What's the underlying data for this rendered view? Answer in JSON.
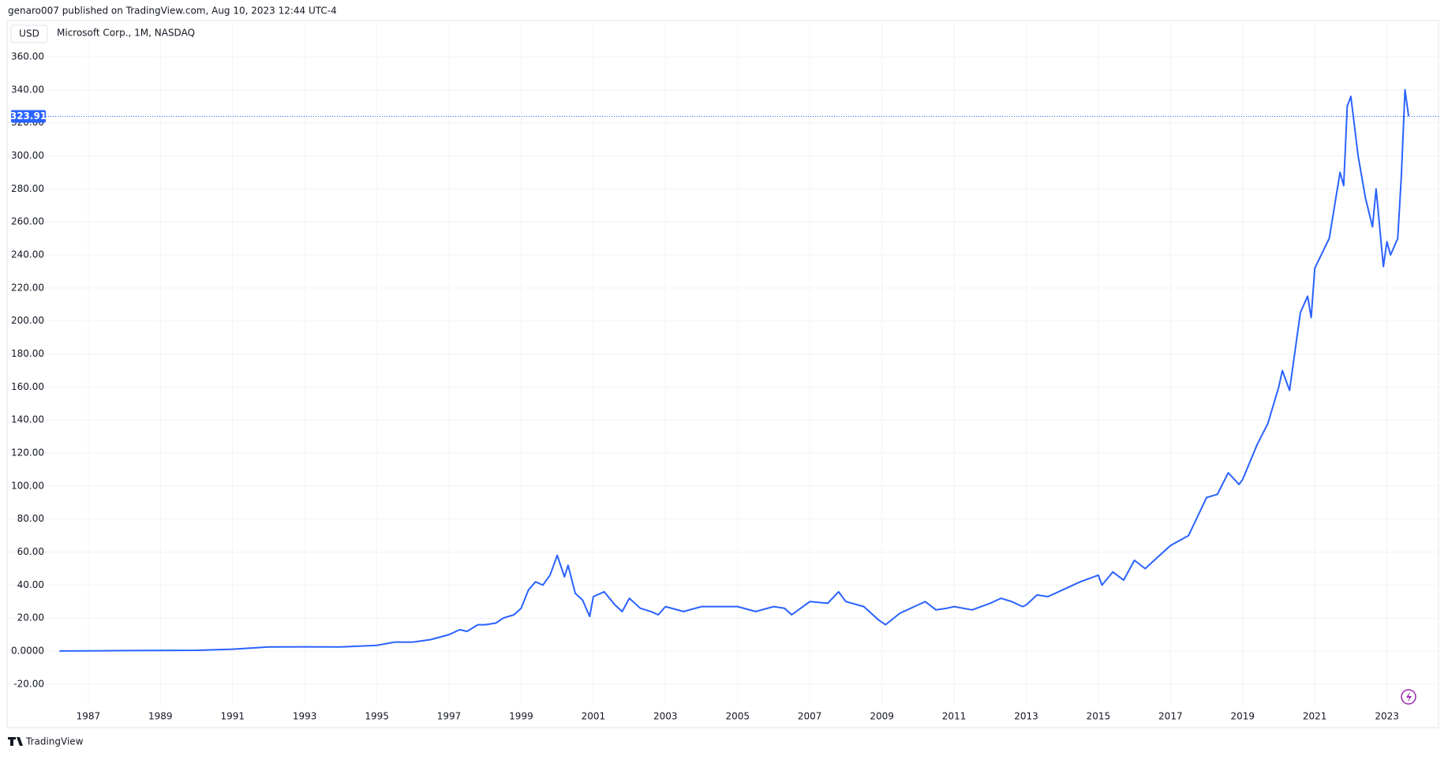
{
  "published": "genaro007 published on TradingView.com, Aug 10, 2023 12:44 UTC-4",
  "currency": "USD",
  "brand": "TradingView",
  "chart_data": {
    "type": "line",
    "title": "Microsoft Corp., 1M, NASDAQ",
    "color": "#2962ff",
    "grid": true,
    "x": [
      1986.2,
      1988,
      1990,
      1991,
      1992,
      1993,
      1994,
      1995,
      1995.5,
      1996,
      1996.5,
      1997,
      1997.3,
      1997.5,
      1997.8,
      1998,
      1998.3,
      1998.5,
      1998.8,
      1999,
      1999.2,
      1999.4,
      1999.6,
      1999.8,
      2000.0,
      2000.2,
      2000.3,
      2000.5,
      2000.7,
      2000.9,
      2001.0,
      2001.3,
      2001.6,
      2001.8,
      2002.0,
      2002.3,
      2002.6,
      2002.8,
      2003,
      2003.5,
      2004,
      2004.5,
      2005,
      2005.5,
      2006,
      2006.3,
      2006.5,
      2007,
      2007.5,
      2007.8,
      2008,
      2008.5,
      2008.9,
      2009.1,
      2009.5,
      2010,
      2010.2,
      2010.5,
      2010.8,
      2011,
      2011.5,
      2012,
      2012.3,
      2012.6,
      2012.9,
      2013,
      2013.3,
      2013.6,
      2014,
      2014.5,
      2015,
      2015.1,
      2015.4,
      2015.7,
      2016,
      2016.3,
      2016.6,
      2017,
      2017.5,
      2018,
      2018.3,
      2018.6,
      2018.9,
      2019,
      2019.4,
      2019.7,
      2020,
      2020.1,
      2020.3,
      2020.6,
      2020.8,
      2020.9,
      2021,
      2021.4,
      2021.7,
      2021.8,
      2021.9,
      2022,
      2022.2,
      2022.4,
      2022.6,
      2022.7,
      2022.9,
      2023.0,
      2023.1,
      2023.3,
      2023.4,
      2023.5,
      2023.6
    ],
    "values": [
      0.1,
      0.3,
      0.5,
      1.2,
      2.5,
      2.6,
      2.5,
      3.5,
      5.5,
      5.5,
      7,
      10,
      13,
      12,
      16,
      16,
      17,
      20,
      22,
      26,
      37,
      42,
      40,
      46,
      58,
      45,
      52,
      35,
      31,
      21,
      33,
      36,
      28,
      24,
      32,
      26,
      24,
      22,
      27,
      24,
      27,
      27,
      27,
      24,
      27,
      26,
      22,
      30,
      29,
      36,
      30,
      27,
      19,
      16,
      23,
      28,
      30,
      25,
      26,
      27,
      25,
      29,
      32,
      30,
      27,
      28,
      34,
      33,
      37,
      42,
      46,
      40,
      48,
      43,
      55,
      50,
      56,
      64,
      70,
      93,
      95,
      108,
      101,
      104,
      125,
      138,
      160,
      170,
      158,
      205,
      215,
      202,
      232,
      250,
      290,
      282,
      330,
      336,
      300,
      275,
      257,
      280,
      233,
      248,
      240,
      250,
      288,
      340,
      324
    ],
    "last_price": 323.91,
    "xlim": [
      1984.75,
      2024.43
    ],
    "xticks": [
      1987,
      1989,
      1991,
      1993,
      1995,
      1997,
      1999,
      2001,
      2003,
      2005,
      2007,
      2009,
      2011,
      2013,
      2015,
      2017,
      2019,
      2021,
      2023
    ],
    "ylim": [
      -32,
      371
    ],
    "yticks": [
      {
        "value": -20,
        "label": "-20.00"
      },
      {
        "value": 0,
        "label": "0.0000"
      },
      {
        "value": 20,
        "label": "20.00"
      },
      {
        "value": 40,
        "label": "40.00"
      },
      {
        "value": 60,
        "label": "60.00"
      },
      {
        "value": 80,
        "label": "80.00"
      },
      {
        "value": 100,
        "label": "100.00"
      },
      {
        "value": 120,
        "label": "120.00"
      },
      {
        "value": 140,
        "label": "140.00"
      },
      {
        "value": 160,
        "label": "160.00"
      },
      {
        "value": 180,
        "label": "180.00"
      },
      {
        "value": 200,
        "label": "200.00"
      },
      {
        "value": 220,
        "label": "220.00"
      },
      {
        "value": 240,
        "label": "240.00"
      },
      {
        "value": 260,
        "label": "260.00"
      },
      {
        "value": 280,
        "label": "280.00"
      },
      {
        "value": 300,
        "label": "300.00"
      },
      {
        "value": 320,
        "label": "320.00"
      },
      {
        "value": 340,
        "label": "340.00"
      },
      {
        "value": 360,
        "label": "360.00"
      }
    ]
  }
}
